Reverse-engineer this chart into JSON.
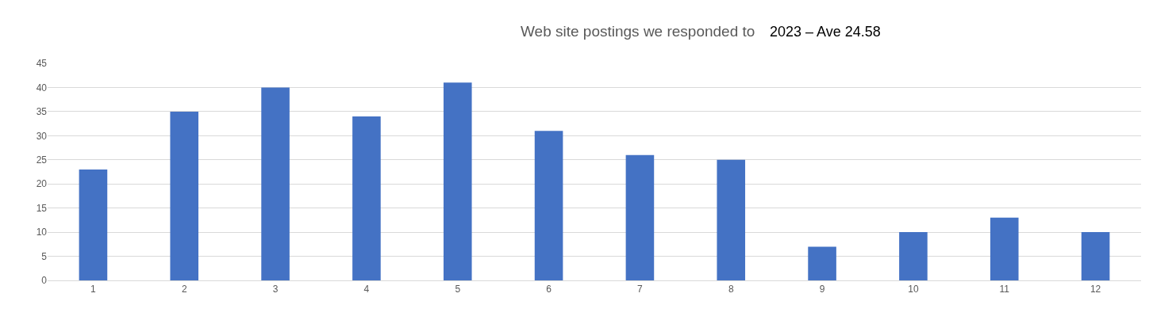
{
  "chart_data": {
    "type": "bar",
    "title": "Web site postings we responded to",
    "subtitle": "2023 – Ave 24.58",
    "categories": [
      "1",
      "2",
      "3",
      "4",
      "5",
      "6",
      "7",
      "8",
      "9",
      "10",
      "11",
      "12"
    ],
    "values": [
      23,
      35,
      40,
      34,
      41,
      31,
      26,
      25,
      7,
      10,
      13,
      10
    ],
    "color": "#4472c4",
    "ylim": [
      0,
      45
    ],
    "yticks": [
      0,
      5,
      10,
      15,
      20,
      25,
      30,
      35,
      40,
      45
    ],
    "grid": "y"
  }
}
